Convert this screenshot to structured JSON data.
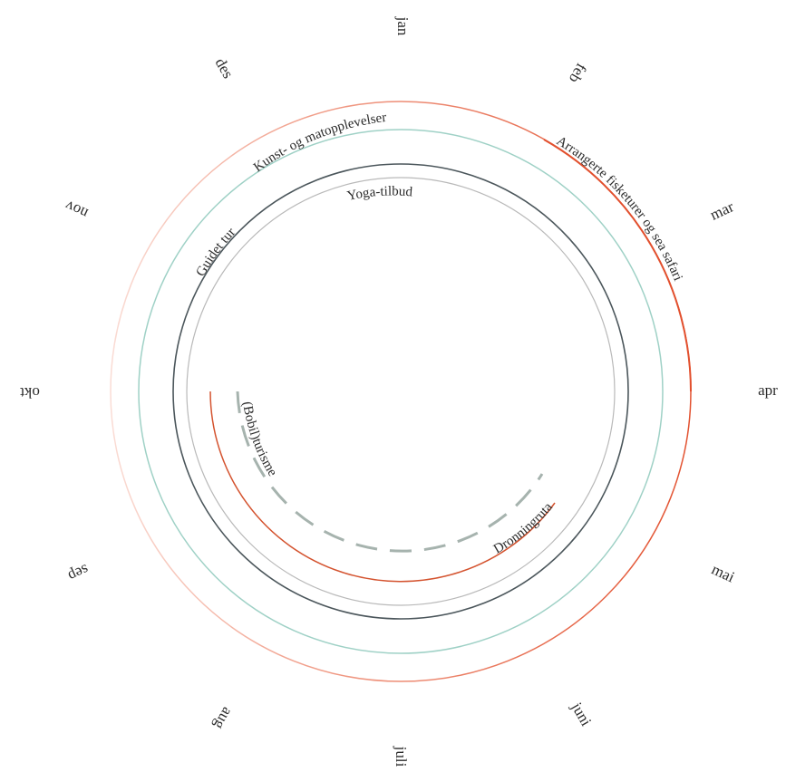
{
  "months": [
    "jan",
    "feb",
    "mar",
    "apr",
    "mai",
    "juni",
    "juli",
    "aug",
    "sep",
    "okt",
    "nov",
    "des"
  ],
  "activities": [
    {
      "label": "Arrangerte fisketurer og sea safari",
      "color": "#e05a3a",
      "style": "fade"
    },
    {
      "label": "Kunst- og matopplevelser",
      "color": "#9fd1c6",
      "style": "solid"
    },
    {
      "label": "Guidet tur",
      "color": "#4b565b",
      "style": "solid"
    },
    {
      "label": "Yoga-tilbud",
      "color": "#b9b9b9",
      "style": "solid"
    },
    {
      "label": "Dronningruta",
      "color": "#d4532f",
      "style": "solid"
    },
    {
      "label": "(Bobil)turisme",
      "color": "#a6b3ae",
      "style": "dashed"
    }
  ]
}
